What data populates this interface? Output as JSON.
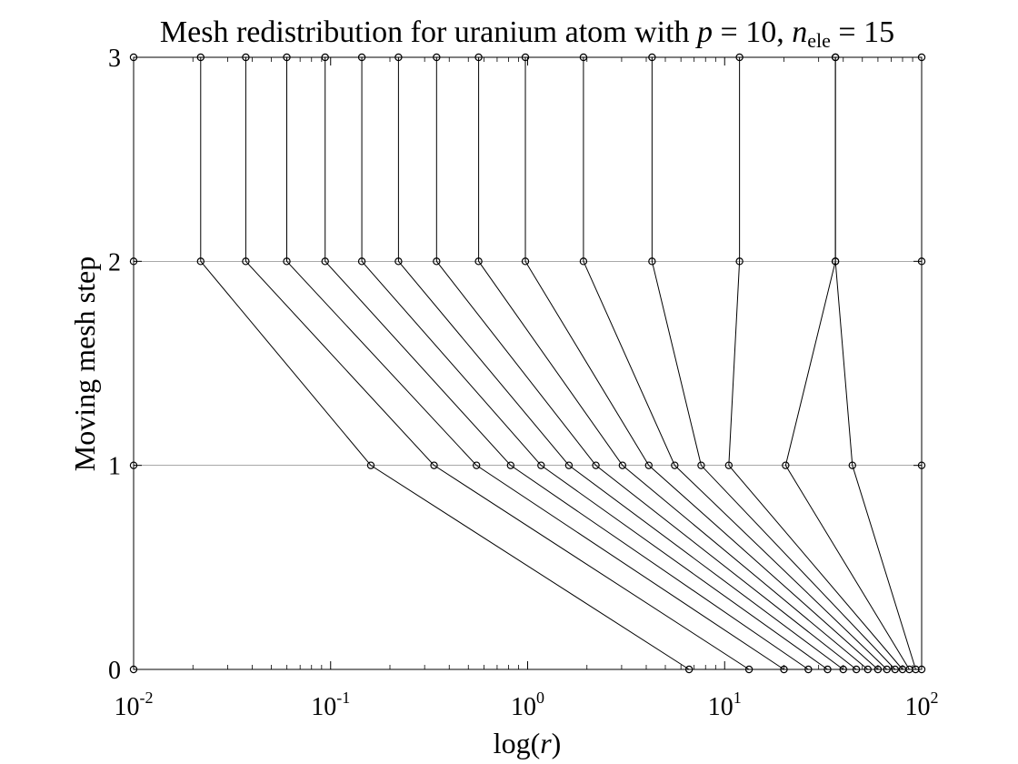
{
  "chart_data": {
    "type": "line",
    "title": {
      "prefix": "Mesh redistribution for uranium atom with ",
      "p_var": "p",
      "p_eq": " = 10, ",
      "n_var": "n",
      "n_sub": "ele",
      "n_eq": " = 15"
    },
    "xlabel": {
      "pre": "log(",
      "var": "r",
      "post": ")"
    },
    "ylabel": "Moving mesh step",
    "xscale": "log",
    "xlim": [
      0.01,
      100
    ],
    "ylim": [
      0,
      3
    ],
    "xticks": [
      {
        "value": 0.01,
        "base": "10",
        "exp": "-2"
      },
      {
        "value": 0.1,
        "base": "10",
        "exp": "-1"
      },
      {
        "value": 1,
        "base": "10",
        "exp": "0"
      },
      {
        "value": 10,
        "base": "10",
        "exp": "1"
      },
      {
        "value": 100,
        "base": "10",
        "exp": "2"
      }
    ],
    "yticks": [
      "0",
      "1",
      "2",
      "3"
    ],
    "grid_y": true,
    "marker": "open-circle",
    "steps": [
      0,
      1,
      2,
      3
    ],
    "node_positions": [
      [
        0.01,
        0.01,
        0.01,
        0.01
      ],
      [
        6.6,
        0.16,
        0.0219,
        0.0219
      ],
      [
        13.3,
        0.335,
        0.0371,
        0.0371
      ],
      [
        20.0,
        0.55,
        0.0599,
        0.0599
      ],
      [
        26.6,
        0.82,
        0.0938,
        0.0938
      ],
      [
        33.3,
        1.17,
        0.144,
        0.144
      ],
      [
        40.0,
        1.62,
        0.221,
        0.221
      ],
      [
        46.6,
        2.22,
        0.345,
        0.345
      ],
      [
        53.3,
        3.03,
        0.564,
        0.564
      ],
      [
        60.0,
        4.12,
        0.974,
        0.974
      ],
      [
        66.6,
        5.58,
        1.92,
        1.92
      ],
      [
        73.3,
        7.6,
        4.28,
        4.28
      ],
      [
        80.0,
        10.5,
        11.9,
        11.9
      ],
      [
        86.6,
        20.4,
        36.5,
        36.5
      ],
      [
        93.3,
        44.5,
        36.5,
        36.5
      ],
      [
        100,
        100,
        100,
        100
      ]
    ]
  }
}
